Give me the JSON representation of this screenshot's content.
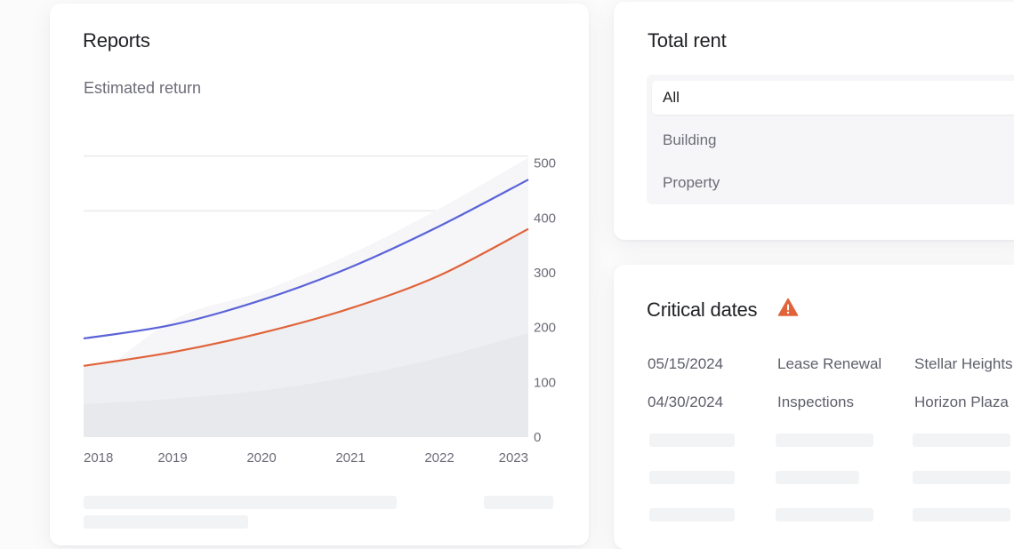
{
  "reports": {
    "title": "Reports",
    "subtitle": "Estimated return"
  },
  "chart_data": {
    "type": "line",
    "title": "",
    "xlabel": "",
    "ylabel": "",
    "x": [
      2018,
      2019,
      2020,
      2021,
      2022,
      2023
    ],
    "x_ticks": [
      "2018",
      "2019",
      "2020",
      "2021",
      "2022",
      "2023"
    ],
    "y_ticks": [
      "0",
      "100",
      "200",
      "300",
      "400",
      "500"
    ],
    "ylim": [
      0,
      600
    ],
    "y_axis_side": "right",
    "grid": true,
    "series": [
      {
        "kind": "line",
        "color": "#5b63d8",
        "values": [
          180,
          205,
          250,
          310,
          385,
          470
        ]
      },
      {
        "kind": "line",
        "color": "#e0633a",
        "values": [
          130,
          155,
          190,
          235,
          295,
          380
        ]
      },
      {
        "kind": "area",
        "color": "#eeeff2",
        "values": [
          60,
          70,
          85,
          110,
          145,
          190
        ]
      }
    ]
  },
  "total_rent": {
    "title": "Total rent",
    "options": [
      {
        "label": "All",
        "selected": true
      },
      {
        "label": "Building",
        "selected": false
      },
      {
        "label": "Property",
        "selected": false
      }
    ]
  },
  "critical_dates": {
    "title": "Critical dates",
    "warning_icon": "warning-triangle-icon",
    "warning_color": "#e0633a",
    "rows": [
      {
        "date": "05/15/2024",
        "type": "Lease Renewal",
        "property": "Stellar Heights"
      },
      {
        "date": "04/30/2024",
        "type": "Inspections",
        "property": "Horizon Plaza"
      }
    ]
  },
  "colors": {
    "line_primary": "#5b63d8",
    "line_secondary": "#e0633a",
    "area_fill": "#eeeff2",
    "text_muted": "#6c6d78"
  }
}
